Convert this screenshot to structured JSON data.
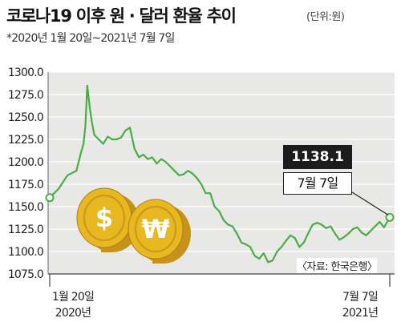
{
  "header": {
    "title": "코로나19 이후 원 · 달러 환율 추이",
    "unit": "(단위:원)",
    "subtitle": "*2020년 1월 20일~2021년 7월 7일"
  },
  "source": "〈자료: 한국은행〉",
  "callout": {
    "value": "1138.1",
    "date": "7월 7일"
  },
  "colors": {
    "line": "#49ad43",
    "plot_bg": "#e8e8e6",
    "grid": "#ffffff",
    "coin": "#e8b821",
    "coin_shadow": "#c8921a"
  },
  "icons": [
    "dollar-coin-icon",
    "won-coin-icon"
  ],
  "chart_data": {
    "type": "line",
    "title": "코로나19 이후 원 · 달러 환율 추이",
    "ylabel": "",
    "xlabel": "",
    "ylim": [
      1075.0,
      1300.0
    ],
    "yticks": [
      "1300.0",
      "1275.0",
      "1250.0",
      "1225.0",
      "1200.0",
      "1175.0",
      "1150.0",
      "1125.0",
      "1100.0",
      "1075.0"
    ],
    "xticks": [
      {
        "line1": "1월 20일",
        "line2": "2020년"
      },
      {
        "line1": "7월 7일",
        "line2": "2021년"
      }
    ],
    "grid": true,
    "x": [
      "2020-01-20",
      "2020-02-03",
      "2020-02-17",
      "2020-03-02",
      "2020-03-09",
      "2020-03-13",
      "2020-03-16",
      "2020-03-19",
      "2020-03-23",
      "2020-03-26",
      "2020-03-30",
      "2020-04-06",
      "2020-04-13",
      "2020-04-20",
      "2020-04-27",
      "2020-05-04",
      "2020-05-11",
      "2020-05-18",
      "2020-05-25",
      "2020-06-01",
      "2020-06-08",
      "2020-06-15",
      "2020-06-22",
      "2020-06-29",
      "2020-07-06",
      "2020-07-13",
      "2020-07-20",
      "2020-07-27",
      "2020-08-03",
      "2020-08-10",
      "2020-08-17",
      "2020-08-24",
      "2020-08-31",
      "2020-09-07",
      "2020-09-14",
      "2020-09-21",
      "2020-09-28",
      "2020-10-05",
      "2020-10-12",
      "2020-10-19",
      "2020-10-26",
      "2020-11-02",
      "2020-11-09",
      "2020-11-16",
      "2020-11-23",
      "2020-11-30",
      "2020-12-07",
      "2020-12-14",
      "2020-12-21",
      "2020-12-28",
      "2021-01-04",
      "2021-01-11",
      "2021-01-18",
      "2021-01-25",
      "2021-02-01",
      "2021-02-08",
      "2021-02-15",
      "2021-02-22",
      "2021-03-02",
      "2021-03-08",
      "2021-03-15",
      "2021-03-22",
      "2021-03-29",
      "2021-04-05",
      "2021-04-12",
      "2021-04-19",
      "2021-04-26",
      "2021-05-03",
      "2021-05-10",
      "2021-05-17",
      "2021-05-24",
      "2021-05-31",
      "2021-06-07",
      "2021-06-14",
      "2021-06-21",
      "2021-06-28",
      "2021-07-07"
    ],
    "series": [
      {
        "values": [
          1160.0,
          1170.0,
          1185.0,
          1190.0,
          1210.0,
          1220.0,
          1240.0,
          1285.0,
          1260.0,
          1245.0,
          1230.0,
          1225.0,
          1220.0,
          1228.0,
          1225.0,
          1225.0,
          1227.0,
          1235.0,
          1238.0,
          1215.0,
          1205.0,
          1208.0,
          1203.0,
          1205.0,
          1198.0,
          1203.0,
          1200.0,
          1195.0,
          1190.0,
          1185.0,
          1186.0,
          1190.0,
          1187.0,
          1182.0,
          1175.0,
          1165.0,
          1165.0,
          1150.0,
          1145.0,
          1135.0,
          1130.0,
          1128.0,
          1120.0,
          1110.0,
          1108.0,
          1105.0,
          1095.0,
          1092.0,
          1098.0,
          1088.0,
          1090.0,
          1100.0,
          1105.0,
          1112.0,
          1118.0,
          1115.0,
          1105.0,
          1110.0,
          1122.0,
          1130.0,
          1132.0,
          1130.0,
          1126.0,
          1128.0,
          1120.0,
          1113.0,
          1116.0,
          1120.0,
          1125.0,
          1127.0,
          1121.0,
          1118.0,
          1123.0,
          1128.0,
          1133.0,
          1127.0,
          1138.1
        ]
      }
    ],
    "highlight": {
      "value": 1138.1,
      "label": "7월 7일"
    }
  }
}
